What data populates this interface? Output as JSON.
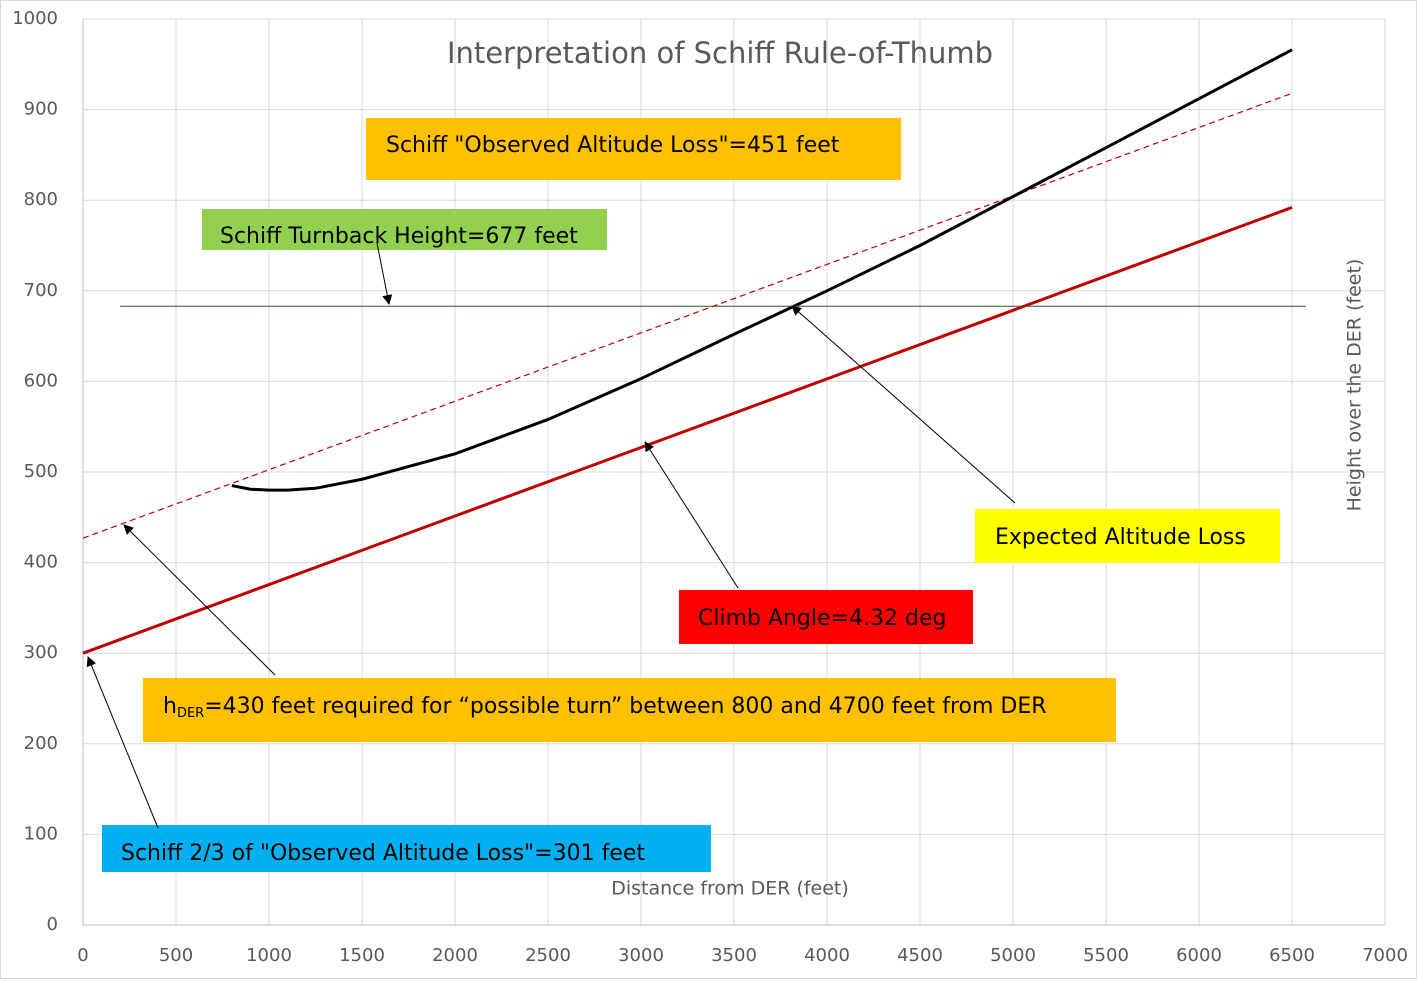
{
  "chart_data": {
    "type": "line",
    "title": "Interpretation of Schiff Rule-of-Thumb",
    "x_label": "Distance from DER (feet)",
    "y_label": "Height over the DER (feet)",
    "xlim": [
      0,
      7000
    ],
    "xticks": [
      0,
      500,
      1000,
      1500,
      2000,
      2500,
      3000,
      3500,
      4000,
      4500,
      5000,
      5500,
      6000,
      6500,
      7000
    ],
    "ylim": [
      0,
      1000
    ],
    "yticks": [
      0,
      100,
      200,
      300,
      400,
      500,
      600,
      700,
      800,
      900,
      1000
    ],
    "grid": true,
    "series": [
      {
        "color": "#c00000",
        "dash": false,
        "width": 3,
        "x": [
          0,
          6500
        ],
        "values": [
          300,
          792
        ]
      },
      {
        "color": "#c00000",
        "dash": true,
        "width": 1.2,
        "x": [
          0,
          6500
        ],
        "values": [
          427,
          918
        ]
      },
      {
        "color": "#000000",
        "dash": false,
        "width": 3,
        "x": [
          800,
          900,
          1000,
          1100,
          1250,
          1500,
          2000,
          2500,
          3000,
          3500,
          4000,
          4500,
          5000,
          5500,
          6000,
          6500
        ],
        "values": [
          485,
          481,
          480,
          480,
          482,
          492,
          520,
          558,
          603,
          652,
          700,
          750,
          804,
          858,
          912,
          966
        ]
      },
      {
        "color": "#375623",
        "dash": false,
        "width": 1,
        "x": [
          200,
          6575
        ],
        "values": [
          683,
          683
        ]
      }
    ],
    "annotations": [
      {
        "text": "Schiff \"Observed Altitude Loss\"=451 feet",
        "color": "#ffc000"
      },
      {
        "text": "Schiff Turnback Height=677 feet",
        "color": "#92d050"
      },
      {
        "text": "Expected Altitude Loss",
        "color": "#ffff00"
      },
      {
        "text": "Climb Angle=4.32 deg",
        "color": "#ff0000"
      },
      {
        "text": "h",
        "sub": "DER",
        "text_after": "=430 feet required for “possible turn” between 800 and 4700 feet from DER",
        "color": "#ffc000"
      },
      {
        "text": "Schiff 2/3 of \"Observed Altitude Loss\"=301 feet",
        "color": "#00b0f0"
      }
    ]
  }
}
